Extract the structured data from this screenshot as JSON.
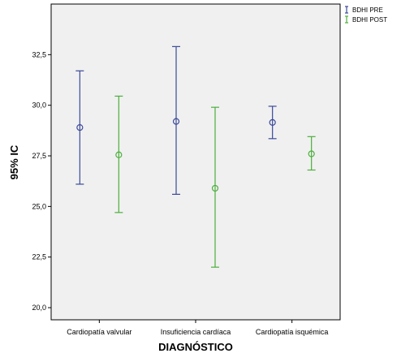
{
  "chart_data": {
    "type": "errorbar",
    "title": "",
    "xlabel": "DIAGNÓSTICO",
    "ylabel": "95% IC",
    "ylim": [
      19.4,
      35.0
    ],
    "yticks": [
      20.0,
      22.5,
      25.0,
      27.5,
      30.0,
      32.5
    ],
    "ytick_labels": [
      "20,0",
      "22,5",
      "25,0",
      "27,5",
      "30,0",
      "32,5"
    ],
    "grid": false,
    "legend_position": "outside-top-right",
    "categories": [
      "Cardiopatía valvular",
      "Insuficiencia cardíaca",
      "Cardiopatía isquémica"
    ],
    "series": [
      {
        "name": "BDHI PRE",
        "color": "#3a4a9a",
        "mean": [
          28.9,
          29.2,
          29.15
        ],
        "lower": [
          26.1,
          25.6,
          28.35
        ],
        "upper": [
          31.7,
          32.9,
          29.95
        ]
      },
      {
        "name": "BDHI POST",
        "color": "#4caf3c",
        "mean": [
          27.55,
          25.9,
          27.6
        ],
        "lower": [
          24.7,
          22.0,
          26.8
        ],
        "upper": [
          30.45,
          29.9,
          28.45
        ]
      }
    ]
  }
}
